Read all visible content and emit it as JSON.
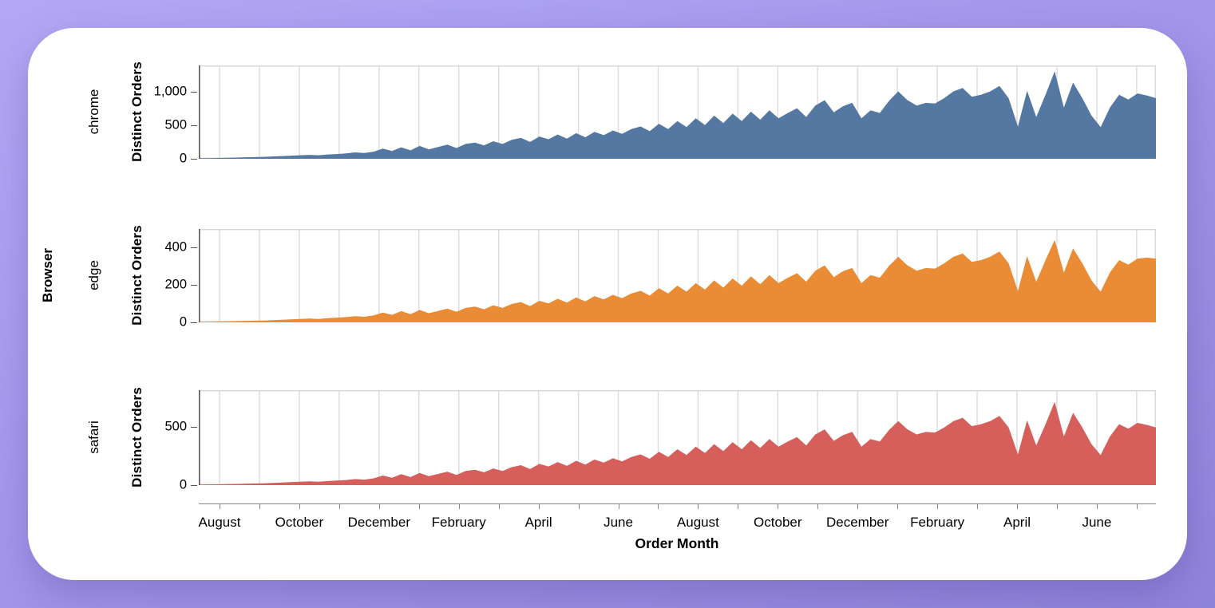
{
  "chart_data": {
    "type": "area",
    "title": "",
    "facet_axis_title": "Browser",
    "x_title": "Order Month",
    "y_title": "Distinct Orders",
    "x_tick_labels": [
      "August",
      "October",
      "December",
      "February",
      "April",
      "June",
      "August",
      "October",
      "December",
      "February",
      "April",
      "June"
    ],
    "x_months_total": 24,
    "x_label_every_n_months": 2,
    "grid": "vertical-monthly",
    "point_interval": "weekly",
    "facets": [
      {
        "label": "chrome",
        "color": "#5578a2",
        "y_max": 1385,
        "y_ticks": [
          {
            "value": 0,
            "label": "0"
          },
          {
            "value": 500,
            "label": "500"
          },
          {
            "value": 1000,
            "label": "1,000"
          }
        ],
        "values": [
          8,
          10,
          12,
          15,
          18,
          22,
          25,
          28,
          34,
          40,
          46,
          52,
          58,
          52,
          64,
          70,
          80,
          95,
          85,
          105,
          150,
          115,
          170,
          125,
          190,
          140,
          175,
          210,
          160,
          220,
          240,
          200,
          260,
          220,
          280,
          310,
          250,
          330,
          290,
          360,
          300,
          380,
          320,
          400,
          350,
          420,
          370,
          440,
          480,
          410,
          520,
          440,
          560,
          470,
          600,
          500,
          640,
          530,
          670,
          560,
          700,
          580,
          720,
          600,
          680,
          750,
          620,
          790,
          870,
          690,
          780,
          830,
          600,
          720,
          680,
          860,
          1000,
          870,
          790,
          830,
          820,
          900,
          1000,
          1050,
          920,
          950,
          1000,
          1080,
          900,
          480,
          1010,
          620,
          950,
          1300,
          760,
          1130,
          900,
          640,
          470,
          760,
          950,
          880,
          970,
          940,
          900
        ]
      },
      {
        "label": "edge",
        "color": "#e98c35",
        "y_max": 498,
        "y_ticks": [
          {
            "value": 0,
            "label": "0"
          },
          {
            "value": 200,
            "label": "200"
          },
          {
            "value": 400,
            "label": "400"
          }
        ],
        "values": [
          3,
          4,
          5,
          6,
          7,
          8,
          9,
          10,
          12,
          14,
          16,
          18,
          20,
          18,
          22,
          25,
          28,
          33,
          30,
          37,
          52,
          40,
          60,
          44,
          66,
          49,
          61,
          73,
          56,
          77,
          84,
          70,
          91,
          77,
          98,
          108,
          87,
          115,
          101,
          126,
          105,
          133,
          112,
          140,
          122,
          147,
          129,
          154,
          168,
          143,
          182,
          154,
          196,
          164,
          210,
          175,
          224,
          185,
          234,
          196,
          245,
          203,
          252,
          210,
          238,
          262,
          217,
          276,
          304,
          241,
          273,
          290,
          210,
          252,
          238,
          301,
          350,
          304,
          276,
          290,
          287,
          315,
          350,
          367,
          322,
          332,
          350,
          378,
          315,
          168,
          353,
          217,
          332,
          440,
          266,
          395,
          315,
          224,
          164,
          266,
          332,
          308,
          340,
          345,
          340
        ]
      },
      {
        "label": "safari",
        "color": "#d65f5c",
        "y_max": 815,
        "y_ticks": [
          {
            "value": 0,
            "label": "0"
          },
          {
            "value": 500,
            "label": "500"
          }
        ],
        "values": [
          4,
          6,
          7,
          8,
          10,
          12,
          14,
          15,
          19,
          22,
          25,
          29,
          32,
          29,
          35,
          39,
          44,
          52,
          47,
          58,
          82,
          63,
          94,
          69,
          105,
          77,
          96,
          116,
          88,
          121,
          132,
          110,
          143,
          121,
          154,
          171,
          138,
          182,
          160,
          198,
          165,
          209,
          176,
          220,
          193,
          231,
          204,
          242,
          264,
          226,
          286,
          242,
          308,
          259,
          330,
          275,
          352,
          292,
          369,
          308,
          385,
          319,
          396,
          330,
          374,
          413,
          341,
          435,
          479,
          380,
          429,
          457,
          330,
          396,
          374,
          473,
          550,
          479,
          435,
          457,
          451,
          495,
          550,
          578,
          506,
          523,
          550,
          594,
          495,
          264,
          556,
          341,
          523,
          715,
          418,
          622,
          495,
          352,
          259,
          418,
          523,
          484,
          534,
          517,
          495
        ]
      }
    ]
  }
}
